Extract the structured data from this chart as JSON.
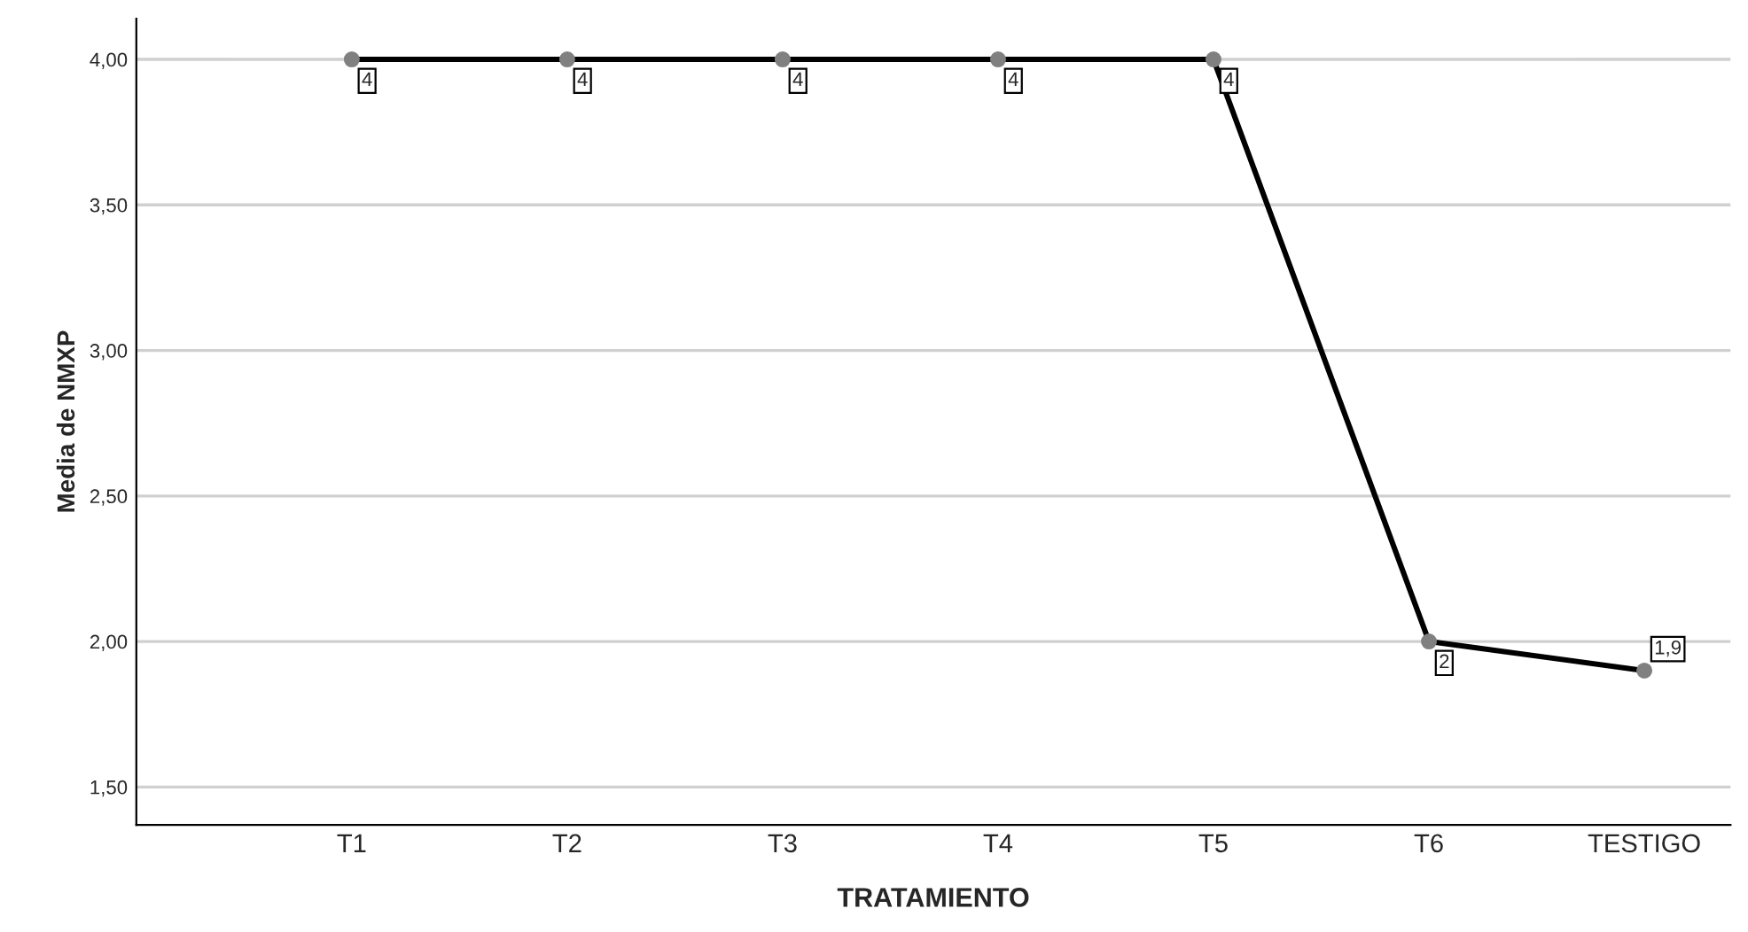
{
  "chart_data": {
    "type": "line",
    "xlabel": "TRATAMIENTO",
    "ylabel": "Media de NMXP",
    "categories": [
      "T1",
      "T2",
      "T3",
      "T4",
      "T5",
      "T6",
      "TESTIGO"
    ],
    "series": [
      {
        "color": "#000000",
        "values": [
          4,
          4,
          4,
          4,
          4,
          2,
          1.9
        ]
      }
    ],
    "value_labels": [
      "4",
      "4",
      "4",
      "4",
      "4",
      "2",
      "1,9"
    ],
    "ylim": [
      1.37,
      4.14
    ],
    "yticks": [
      {
        "value": 1.5,
        "label": "1,50"
      },
      {
        "value": 2.0,
        "label": "2,00"
      },
      {
        "value": 2.5,
        "label": "2,50"
      },
      {
        "value": 3.0,
        "label": "3,00"
      },
      {
        "value": 3.5,
        "label": "3,50"
      },
      {
        "value": 4.0,
        "label": "4,00"
      }
    ],
    "grid": "y",
    "marker": "circle",
    "line_style": "solid"
  }
}
